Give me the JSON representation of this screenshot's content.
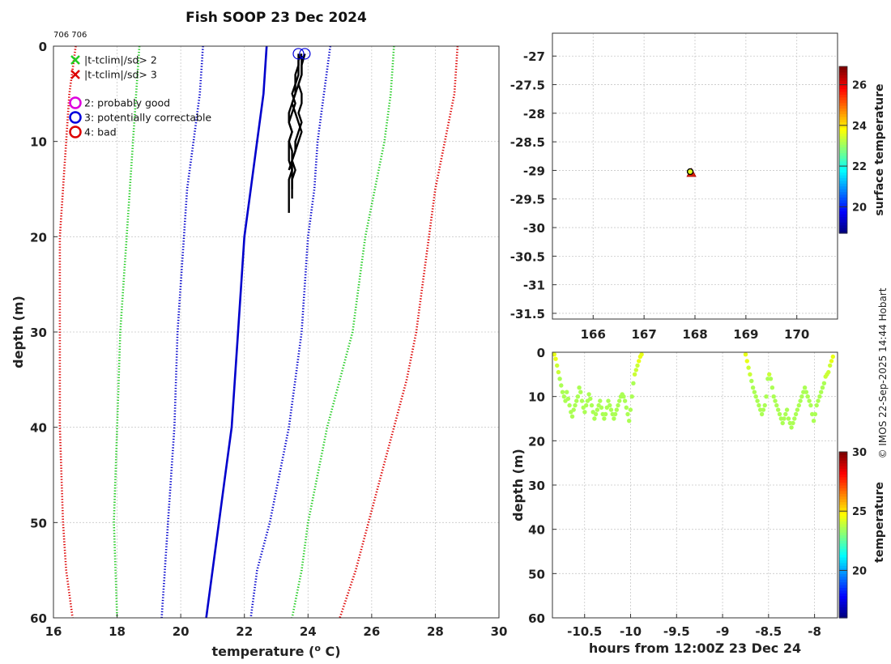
{
  "chart_data": [
    {
      "type": "line",
      "title": "Fish SOOP 23 Dec 2024",
      "id_label": "706 706",
      "xlabel": "temperature (",
      "xlabel_sup": "o",
      "xlabel_tail": " C)",
      "ylabel": "depth (m)",
      "xlim": [
        16,
        30
      ],
      "ylim": [
        0,
        60
      ],
      "y_reversed": true,
      "xticks": [
        16,
        18,
        20,
        22,
        24,
        26,
        28,
        30
      ],
      "yticks": [
        0,
        10,
        20,
        30,
        40,
        50,
        60
      ],
      "grid": true,
      "legend": [
        {
          "marker": "x",
          "color": "#22cc22",
          "label": "|t-tclim|/sd> 2"
        },
        {
          "marker": "x",
          "color": "#dd0000",
          "label": "|t-tclim|/sd> 3"
        },
        {
          "marker": "o",
          "color": "#dd00dd",
          "label": "2: probably good"
        },
        {
          "marker": "o",
          "color": "#0000dd",
          "label": "3: potentially correctable"
        },
        {
          "marker": "o",
          "color": "#dd0000",
          "label": "4: bad"
        }
      ],
      "series": [
        {
          "name": "climatology mean",
          "color": "#0000cc",
          "style": "solid",
          "points": [
            [
              22.7,
              0
            ],
            [
              22.6,
              5
            ],
            [
              22.4,
              10
            ],
            [
              22.2,
              15
            ],
            [
              22.0,
              20
            ],
            [
              21.9,
              25
            ],
            [
              21.8,
              30
            ],
            [
              21.6,
              40
            ],
            [
              21.4,
              45
            ],
            [
              21.2,
              50
            ],
            [
              20.8,
              60
            ]
          ]
        },
        {
          "name": "mean - 1sd",
          "color": "#0000cc",
          "style": "dotted",
          "points": [
            [
              20.7,
              0
            ],
            [
              20.6,
              5
            ],
            [
              20.4,
              10
            ],
            [
              20.2,
              15
            ],
            [
              20.1,
              20
            ],
            [
              20.0,
              25
            ],
            [
              19.9,
              30
            ],
            [
              19.8,
              40
            ],
            [
              19.6,
              50
            ],
            [
              19.5,
              55
            ],
            [
              19.4,
              60
            ]
          ]
        },
        {
          "name": "mean + 1sd",
          "color": "#0000cc",
          "style": "dotted",
          "points": [
            [
              24.7,
              0
            ],
            [
              24.5,
              5
            ],
            [
              24.3,
              10
            ],
            [
              24.2,
              15
            ],
            [
              24.0,
              20
            ],
            [
              23.8,
              30
            ],
            [
              23.6,
              35
            ],
            [
              23.4,
              40
            ],
            [
              23.1,
              45
            ],
            [
              22.8,
              50
            ],
            [
              22.4,
              55
            ],
            [
              22.2,
              60
            ]
          ]
        },
        {
          "name": "mean - 2sd",
          "color": "#22cc22",
          "style": "dotted",
          "points": [
            [
              18.7,
              0
            ],
            [
              18.6,
              5
            ],
            [
              18.5,
              10
            ],
            [
              18.4,
              15
            ],
            [
              18.3,
              20
            ],
            [
              18.2,
              25
            ],
            [
              18.1,
              30
            ],
            [
              18.0,
              40
            ],
            [
              17.9,
              50
            ],
            [
              18.0,
              60
            ]
          ]
        },
        {
          "name": "mean + 2sd",
          "color": "#22cc22",
          "style": "dotted",
          "points": [
            [
              26.7,
              0
            ],
            [
              26.6,
              5
            ],
            [
              26.4,
              10
            ],
            [
              26.1,
              15
            ],
            [
              25.8,
              20
            ],
            [
              25.6,
              25
            ],
            [
              25.4,
              30
            ],
            [
              25.0,
              35
            ],
            [
              24.6,
              40
            ],
            [
              24.3,
              45
            ],
            [
              24.0,
              50
            ],
            [
              23.8,
              55
            ],
            [
              23.5,
              60
            ]
          ]
        },
        {
          "name": "mean - 3sd",
          "color": "#dd0000",
          "style": "dotted",
          "points": [
            [
              16.7,
              0
            ],
            [
              16.5,
              5
            ],
            [
              16.4,
              10
            ],
            [
              16.3,
              15
            ],
            [
              16.2,
              20
            ],
            [
              16.2,
              25
            ],
            [
              16.2,
              30
            ],
            [
              16.2,
              40
            ],
            [
              16.3,
              50
            ],
            [
              16.4,
              55
            ],
            [
              16.6,
              60
            ]
          ]
        },
        {
          "name": "mean + 3sd",
          "color": "#dd0000",
          "style": "dotted",
          "points": [
            [
              28.7,
              0
            ],
            [
              28.6,
              5
            ],
            [
              28.3,
              10
            ],
            [
              28.0,
              15
            ],
            [
              27.8,
              20
            ],
            [
              27.6,
              25
            ],
            [
              27.4,
              30
            ],
            [
              27.1,
              35
            ],
            [
              26.7,
              40
            ],
            [
              26.3,
              45
            ],
            [
              25.9,
              50
            ],
            [
              25.5,
              55
            ],
            [
              25.0,
              60
            ]
          ]
        },
        {
          "name": "profiles",
          "color": "#000000",
          "style": "solid",
          "profiles": [
            [
              [
                23.8,
                0.8
              ],
              [
                23.7,
                1.5
              ],
              [
                23.7,
                3
              ],
              [
                23.6,
                4
              ],
              [
                23.5,
                5
              ],
              [
                23.6,
                6
              ],
              [
                23.5,
                7
              ],
              [
                23.4,
                8
              ],
              [
                23.5,
                9
              ],
              [
                23.4,
                10
              ],
              [
                23.4,
                11
              ],
              [
                23.4,
                12
              ],
              [
                23.5,
                13
              ],
              [
                23.4,
                14
              ],
              [
                23.4,
                15
              ],
              [
                23.4,
                16
              ],
              [
                23.4,
                17
              ],
              [
                23.4,
                17.5
              ]
            ],
            [
              [
                23.9,
                0.8
              ],
              [
                23.8,
                2
              ],
              [
                23.8,
                3
              ],
              [
                23.7,
                4
              ],
              [
                23.6,
                5
              ],
              [
                23.5,
                6
              ],
              [
                23.4,
                7
              ],
              [
                23.4,
                8
              ],
              [
                23.5,
                9
              ],
              [
                23.4,
                10
              ],
              [
                23.5,
                11
              ],
              [
                23.5,
                12
              ],
              [
                23.5,
                13
              ],
              [
                23.5,
                14
              ],
              [
                23.5,
                15
              ],
              [
                23.5,
                16
              ]
            ],
            [
              [
                23.7,
                0.8
              ],
              [
                23.7,
                2
              ],
              [
                23.6,
                3
              ],
              [
                23.6,
                4
              ],
              [
                23.6,
                5
              ],
              [
                23.5,
                6
              ],
              [
                23.6,
                7
              ],
              [
                23.7,
                8
              ],
              [
                23.8,
                9
              ],
              [
                23.7,
                10
              ],
              [
                23.6,
                11
              ],
              [
                23.5,
                12
              ],
              [
                23.6,
                13
              ],
              [
                23.5,
                14
              ],
              [
                23.5,
                15
              ]
            ],
            [
              [
                23.8,
                1
              ],
              [
                23.8,
                2
              ],
              [
                23.8,
                3
              ],
              [
                23.7,
                4
              ],
              [
                23.8,
                5
              ],
              [
                23.8,
                6
              ],
              [
                23.7,
                7
              ],
              [
                23.8,
                8
              ],
              [
                23.7,
                9
              ],
              [
                23.6,
                10
              ],
              [
                23.6,
                11
              ],
              [
                23.5,
                12
              ],
              [
                23.4,
                13
              ]
            ]
          ]
        }
      ],
      "flags": [
        {
          "label": "3: potentially correctable",
          "color": "#0000dd",
          "points": [
            [
              23.7,
              0.8
            ],
            [
              23.9,
              0.8
            ]
          ]
        }
      ]
    },
    {
      "type": "scatter",
      "xlim": [
        165.2,
        170.8
      ],
      "ylim": [
        -31.6,
        -26.6
      ],
      "xticks": [
        166,
        167,
        168,
        169,
        170
      ],
      "yticks": [
        -27,
        -27.5,
        -28,
        -28.5,
        -29,
        -29.5,
        -30,
        -30.5,
        -31,
        -31.5
      ],
      "grid": true,
      "points": [
        {
          "lon": 167.93,
          "lat": -29.05,
          "temperature": 23.6
        }
      ],
      "colorbar": {
        "label": "surface temperature",
        "range": [
          18.7,
          26.9
        ],
        "ticks": [
          20,
          22,
          24,
          26
        ]
      }
    },
    {
      "type": "scatter",
      "xlabel": "hours from 12:00Z 23 Dec 24",
      "ylabel": "depth (m)",
      "xlim": [
        -10.85,
        -7.75
      ],
      "ylim": [
        0,
        60
      ],
      "y_reversed": true,
      "xticks": [
        -10.5,
        -10,
        -9.5,
        -9,
        -8.5,
        -8
      ],
      "xtick_labels": [
        "-10.5",
        "-10",
        "-9.5",
        "-9",
        "-8.5",
        "-8"
      ],
      "yticks": [
        0,
        10,
        20,
        30,
        40,
        50,
        60
      ],
      "grid": true,
      "colorbar": {
        "label": "temperature",
        "range": [
          16,
          30
        ],
        "ticks": [
          20,
          25,
          30
        ]
      },
      "segments": [
        {
          "t_start": -10.83,
          "t_end": -9.88,
          "temperature": 23.6,
          "depths": [
            0.5,
            1.5,
            3,
            4.5,
            6,
            7.5,
            9,
            10,
            11,
            9,
            10.5,
            12,
            13.5,
            14.5,
            13,
            12,
            11,
            10,
            8,
            9,
            11,
            12.5,
            13.5,
            12,
            11,
            9.5,
            10.5,
            12,
            13.5,
            15,
            14,
            13,
            12,
            11,
            12.5,
            14,
            15,
            14,
            12.5,
            11,
            12,
            13,
            14,
            15,
            14,
            13,
            12,
            11,
            10,
            9.5,
            10,
            11,
            12.5,
            14,
            15.5,
            13,
            10,
            7,
            5,
            4,
            3,
            2,
            1,
            0.5
          ]
        },
        {
          "t_start": -8.75,
          "t_end": -7.8,
          "temperature": 23.6,
          "depths": [
            0.5,
            2,
            3.5,
            5,
            6.5,
            8,
            9,
            10,
            11,
            12,
            13,
            14,
            13,
            12,
            10,
            6,
            5,
            6,
            8,
            10,
            11,
            12,
            13,
            14,
            15,
            16,
            15,
            14,
            13,
            15,
            16,
            17,
            16,
            15,
            14,
            13,
            12,
            11,
            10,
            9,
            8,
            9,
            10,
            11,
            12,
            14,
            15.5,
            14,
            12,
            11,
            10,
            9,
            8,
            7,
            5.5,
            5,
            4.5,
            3,
            2,
            1
          ]
        }
      ]
    }
  ],
  "footer": {
    "credit": "© IMOS 22-Sep-2025 14:44 Hobart"
  }
}
